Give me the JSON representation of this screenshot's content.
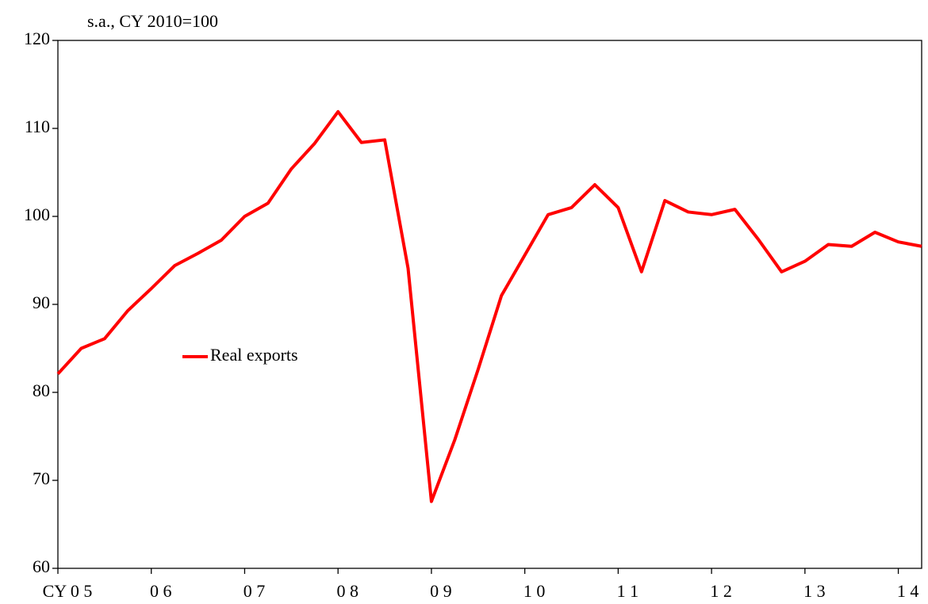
{
  "chart_data": {
    "type": "line",
    "y_axis_label": "s.a., CY 2010=100",
    "categories": [
      "CY 0 5",
      null,
      null,
      null,
      "0 6",
      null,
      null,
      null,
      "0 7",
      null,
      null,
      null,
      "0 8",
      null,
      null,
      null,
      "0 9",
      null,
      null,
      null,
      "1 0",
      null,
      null,
      null,
      "1 1",
      null,
      null,
      null,
      "1 2",
      null,
      null,
      null,
      "1 3",
      null,
      null,
      null,
      "1 4",
      null
    ],
    "series": [
      {
        "name": "Real exports",
        "color": "#ff0000",
        "values": [
          82.1,
          85.0,
          86.1,
          89.3,
          91.8,
          94.4,
          95.8,
          97.3,
          100.0,
          101.5,
          105.4,
          108.3,
          111.9,
          108.4,
          108.7,
          94.1,
          67.6,
          74.6,
          82.6,
          91.0,
          95.6,
          100.2,
          101.0,
          103.6,
          101.0,
          93.7,
          101.8,
          100.5,
          100.2,
          100.8,
          97.4,
          93.7,
          94.9,
          96.8,
          96.6,
          98.2,
          97.1,
          96.6
        ]
      }
    ],
    "ylim": [
      60,
      120
    ],
    "yticks": [
      60,
      70,
      80,
      90,
      100,
      110,
      120
    ],
    "grid": false
  }
}
